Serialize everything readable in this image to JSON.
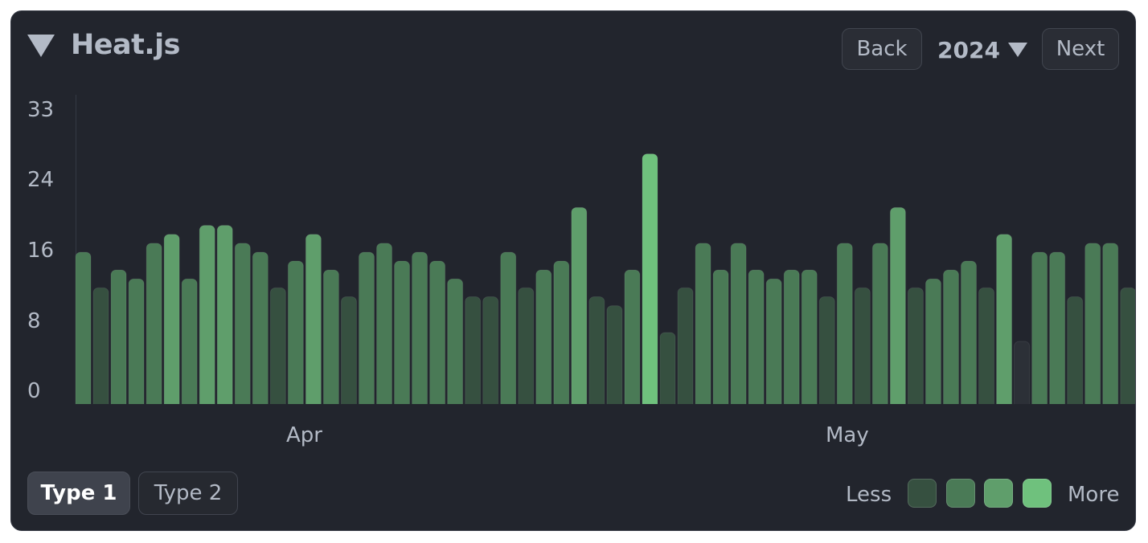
{
  "header": {
    "title": "Heat.js",
    "back_label": "Back",
    "year_label": "2024",
    "next_label": "Next"
  },
  "chart_data": {
    "type": "bar",
    "title": "",
    "xlabel": "",
    "ylabel": "",
    "ylim": [
      0,
      33
    ],
    "y_ticks": [
      "33",
      "24",
      "16",
      "8",
      "0"
    ],
    "month_labels": [
      "Apr",
      "May"
    ],
    "values": [
      17,
      13,
      15,
      14,
      18,
      19,
      14,
      20,
      20,
      18,
      17,
      13,
      16,
      19,
      15,
      12,
      17,
      18,
      16,
      17,
      16,
      14,
      12,
      12,
      17,
      13,
      15,
      16,
      22,
      12,
      11,
      15,
      28,
      8,
      13,
      18,
      15,
      18,
      15,
      14,
      15,
      15,
      12,
      18,
      13,
      18,
      22,
      13,
      14,
      15,
      16,
      13,
      19,
      7,
      17,
      17,
      12,
      18,
      18,
      13
    ],
    "levels": [
      {
        "min": 0,
        "color": "#2c3037"
      },
      {
        "min": 8,
        "color": "#365040"
      },
      {
        "min": 14,
        "color": "#4a7a56"
      },
      {
        "min": 19,
        "color": "#5f9e6b"
      },
      {
        "min": 25,
        "color": "#6fc17d"
      }
    ]
  },
  "footer": {
    "type1_label": "Type 1",
    "type2_label": "Type 2",
    "less_label": "Less",
    "more_label": "More",
    "legend_colors": [
      "#365040",
      "#4a7a56",
      "#5f9e6b",
      "#6fc17d"
    ]
  }
}
